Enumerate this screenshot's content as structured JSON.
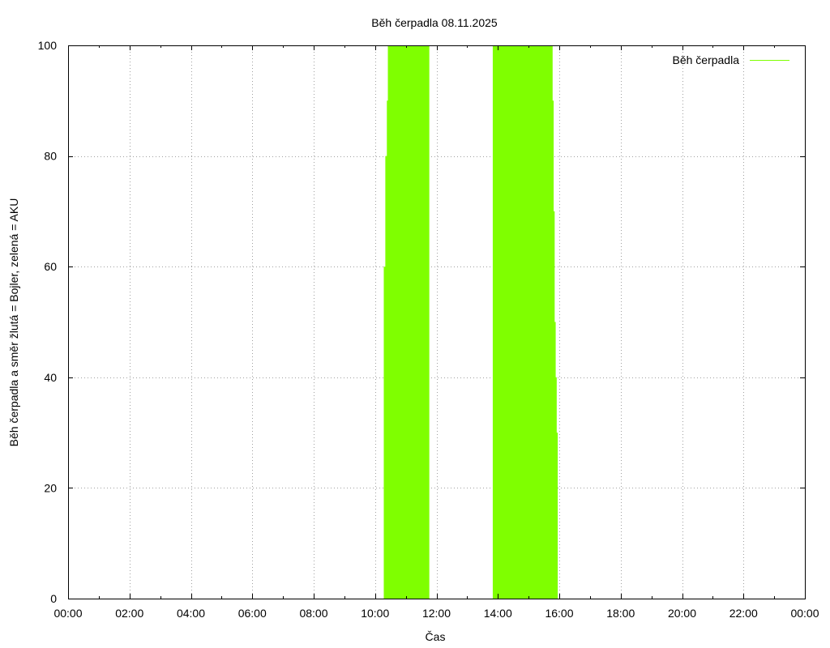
{
  "chart_data": {
    "type": "area",
    "title": "Běh čerpadla 08.11.2025",
    "xlabel": "Čas",
    "ylabel": "Běh čerpadla a směr žlutá = Bojler, zelená = AKU",
    "xlim_hours": [
      0,
      24
    ],
    "ylim": [
      0,
      100
    ],
    "grid": true,
    "legend_position": "top-right",
    "x_tick_labels": [
      "00:00",
      "02:00",
      "04:00",
      "06:00",
      "08:00",
      "10:00",
      "12:00",
      "14:00",
      "16:00",
      "18:00",
      "20:00",
      "22:00",
      "00:00"
    ],
    "y_tick_labels": [
      "0",
      "20",
      "40",
      "60",
      "80",
      "100"
    ],
    "series": [
      {
        "name": "Běh čerpadla",
        "color": "#7fff00",
        "points": [
          {
            "t": "10:17",
            "value": 60
          },
          {
            "t": "10:20",
            "value": 80
          },
          {
            "t": "10:23",
            "value": 90
          },
          {
            "t": "10:25",
            "value": 100
          },
          {
            "t": "11:45",
            "value": 100
          },
          {
            "t": "11:46",
            "value": 0
          },
          {
            "t": "13:49",
            "value": 0
          },
          {
            "t": "13:50",
            "value": 100
          },
          {
            "t": "15:45",
            "value": 100
          },
          {
            "t": "15:47",
            "value": 90
          },
          {
            "t": "15:49",
            "value": 70
          },
          {
            "t": "15:51",
            "value": 50
          },
          {
            "t": "15:53",
            "value": 40
          },
          {
            "t": "15:55",
            "value": 30
          },
          {
            "t": "15:57",
            "value": 0
          }
        ]
      }
    ]
  }
}
